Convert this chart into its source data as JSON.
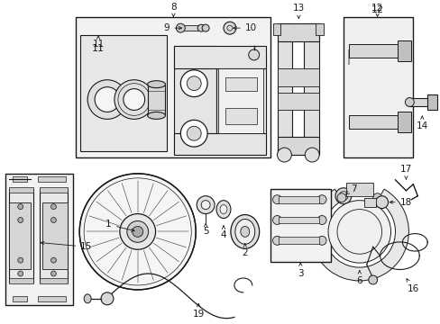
{
  "bg_color": "#ffffff",
  "line_color": "#1a1a1a",
  "fig_width": 4.89,
  "fig_height": 3.6,
  "dpi": 100,
  "label_fontsize": 7.5,
  "annotation_fontsize": 7.5
}
